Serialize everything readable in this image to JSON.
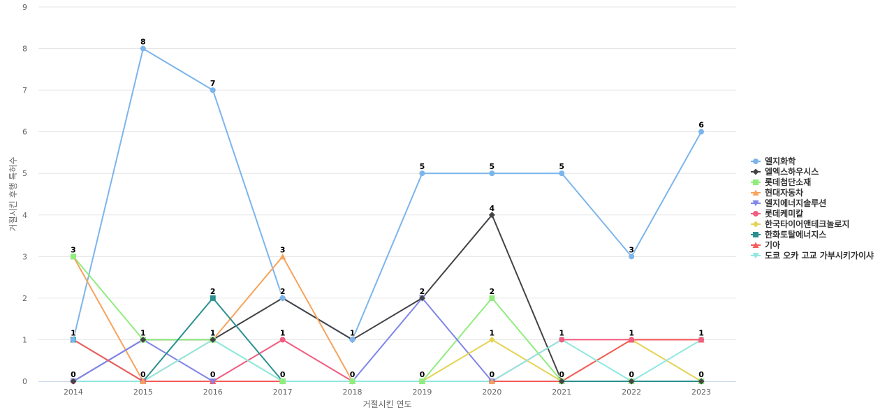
{
  "chart_data": {
    "type": "line",
    "xlabel": "거절시킨 연도",
    "ylabel": "거절시킨 후행 특허수",
    "ylim": [
      0,
      9
    ],
    "yticks": [
      "0",
      "1",
      "2",
      "3",
      "4",
      "5",
      "6",
      "7",
      "8",
      "9"
    ],
    "categories": [
      "2014",
      "2015",
      "2016",
      "2017",
      "2018",
      "2019",
      "2020",
      "2021",
      "2022",
      "2023"
    ],
    "grid": true,
    "legend_position": "right",
    "series": [
      {
        "name": "엘지화학",
        "color": "#7cb5ec",
        "marker": "circle",
        "values": [
          1,
          8,
          7,
          2,
          1,
          5,
          5,
          5,
          3,
          6
        ]
      },
      {
        "name": "엘엑스하우시스",
        "color": "#434348",
        "marker": "diamond",
        "values": [
          0,
          1,
          1,
          2,
          1,
          2,
          4,
          0,
          0,
          0
        ]
      },
      {
        "name": "롯데첨단소재",
        "color": "#90ed7d",
        "marker": "square",
        "values": [
          3,
          1,
          1,
          0,
          0,
          0,
          2,
          0,
          0,
          0
        ]
      },
      {
        "name": "현대자동차",
        "color": "#f7a35c",
        "marker": "triangle",
        "values": [
          3,
          0,
          1,
          3,
          0,
          0,
          0,
          0,
          0,
          0
        ]
      },
      {
        "name": "엘지에너지솔루션",
        "color": "#8085e9",
        "marker": "triangle-down",
        "values": [
          0,
          1,
          0,
          0,
          0,
          2,
          0,
          0,
          0,
          0
        ]
      },
      {
        "name": "롯데케미칼",
        "color": "#f15c80",
        "marker": "circle",
        "values": [
          0,
          0,
          0,
          1,
          0,
          0,
          0,
          1,
          1,
          1
        ]
      },
      {
        "name": "한국타이어앤테크놀로지",
        "color": "#e4d354",
        "marker": "diamond",
        "values": [
          0,
          0,
          0,
          0,
          0,
          0,
          1,
          0,
          1,
          0
        ]
      },
      {
        "name": "한화토탈에너지스",
        "color": "#2b908f",
        "marker": "square",
        "values": [
          1,
          0,
          2,
          0,
          0,
          0,
          0,
          0,
          0,
          0
        ]
      },
      {
        "name": "기아",
        "color": "#f45b5b",
        "marker": "triangle",
        "values": [
          1,
          0,
          0,
          0,
          0,
          0,
          0,
          0,
          1,
          1
        ]
      },
      {
        "name": "도쿄 오카 고교 가부시키가이샤",
        "color": "#91e8e1",
        "marker": "triangle-down",
        "values": [
          0,
          0,
          1,
          0,
          0,
          0,
          0,
          1,
          0,
          1
        ]
      }
    ],
    "data_labels": [
      {
        "series": 0,
        "index": 0,
        "text": "1"
      },
      {
        "series": 0,
        "index": 1,
        "text": "8"
      },
      {
        "series": 0,
        "index": 2,
        "text": "7"
      },
      {
        "series": 0,
        "index": 3,
        "text": "2"
      },
      {
        "series": 0,
        "index": 4,
        "text": "1"
      },
      {
        "series": 0,
        "index": 5,
        "text": "5"
      },
      {
        "series": 0,
        "index": 6,
        "text": "5"
      },
      {
        "series": 0,
        "index": 7,
        "text": "5"
      },
      {
        "series": 0,
        "index": 8,
        "text": "3"
      },
      {
        "series": 0,
        "index": 9,
        "text": "6"
      },
      {
        "series": 2,
        "index": 0,
        "text": "3"
      },
      {
        "series": 1,
        "index": 1,
        "text": "1"
      },
      {
        "series": 7,
        "index": 2,
        "text": "2"
      },
      {
        "series": 2,
        "index": 2,
        "text": "1"
      },
      {
        "series": 3,
        "index": 3,
        "text": "3"
      },
      {
        "series": 5,
        "index": 3,
        "text": "1"
      },
      {
        "series": 1,
        "index": 5,
        "text": "2"
      },
      {
        "series": 1,
        "index": 6,
        "text": "4"
      },
      {
        "series": 2,
        "index": 6,
        "text": "2"
      },
      {
        "series": 6,
        "index": 6,
        "text": "1"
      },
      {
        "series": 9,
        "index": 7,
        "text": "1"
      },
      {
        "series": 8,
        "index": 8,
        "text": "1"
      },
      {
        "series": 9,
        "index": 9,
        "text": "1"
      },
      {
        "series": 4,
        "index": 0,
        "text": "0"
      },
      {
        "series": 3,
        "index": 1,
        "text": "0"
      },
      {
        "series": 4,
        "index": 2,
        "text": "0"
      },
      {
        "series": 7,
        "index": 3,
        "text": "0"
      },
      {
        "series": 3,
        "index": 4,
        "text": "0"
      },
      {
        "series": 2,
        "index": 5,
        "text": "0"
      },
      {
        "series": 4,
        "index": 6,
        "text": "0"
      },
      {
        "series": 1,
        "index": 7,
        "text": "0"
      },
      {
        "series": 7,
        "index": 8,
        "text": "0"
      },
      {
        "series": 7,
        "index": 9,
        "text": "0"
      }
    ]
  }
}
